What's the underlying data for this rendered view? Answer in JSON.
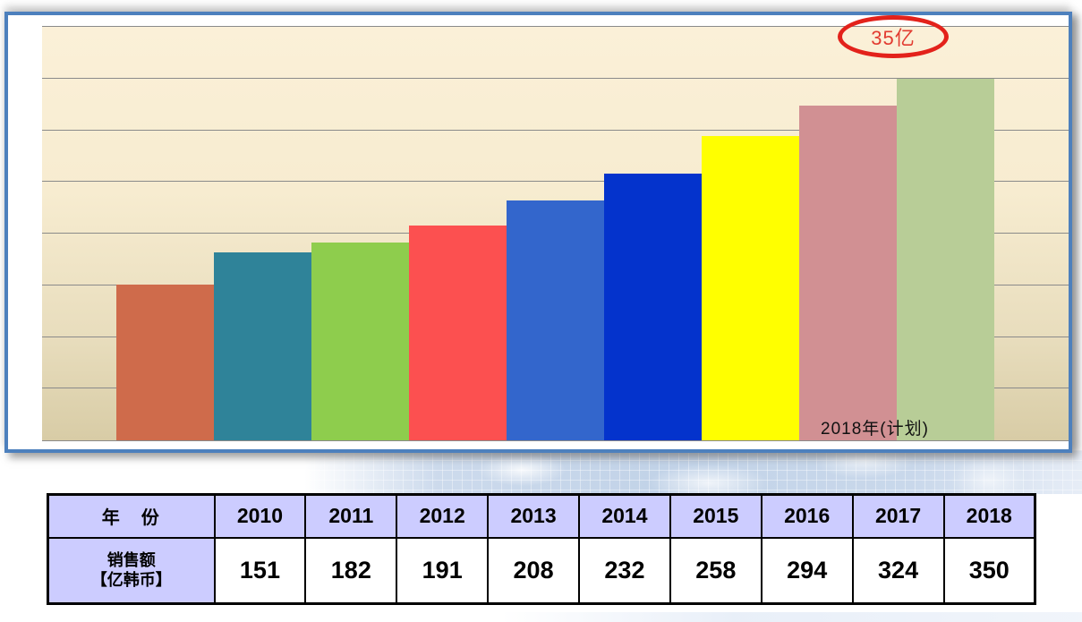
{
  "annotation": {
    "label": "35亿",
    "text_color": "#e23b30",
    "circle_color": "#e3221b"
  },
  "plan_note": "2018年(计划)",
  "chart_data": {
    "type": "bar",
    "title": "",
    "xlabel": "",
    "ylabel": "",
    "categories": [
      "2010",
      "2011",
      "2012",
      "2013",
      "2014",
      "2015",
      "2016",
      "2017",
      "2018"
    ],
    "values": [
      151,
      182,
      191,
      208,
      232,
      258,
      294,
      324,
      350
    ],
    "series_name": "销售额【亿韩币】",
    "unit": "亿韩币",
    "ylim": [
      0,
      400
    ],
    "gridline_step": 50,
    "grid": true,
    "legend": false,
    "annotations": [
      "35亿",
      "2018年(计划)"
    ],
    "bar_colors": [
      "#cf6b4b",
      "#2f8399",
      "#8ecd4d",
      "#fc5050",
      "#3366cc",
      "#0433cc",
      "#ffff00",
      "#d19093",
      "#b8cd97"
    ],
    "plot_bg_top": "#fbf0d8",
    "plot_bg_bottom": "#d8cca6",
    "gridline_color": "#8a8a8a",
    "frame_border_color": "#4d80bd"
  },
  "table": {
    "header_bg": "#ccccff",
    "year_header_label": "年　份",
    "series_label": "销售额\n【亿韩币】",
    "years": [
      "2010",
      "2011",
      "2012",
      "2013",
      "2014",
      "2015",
      "2016",
      "2017",
      "2018"
    ],
    "values": [
      "151",
      "182",
      "191",
      "208",
      "232",
      "258",
      "294",
      "324",
      "350"
    ]
  }
}
